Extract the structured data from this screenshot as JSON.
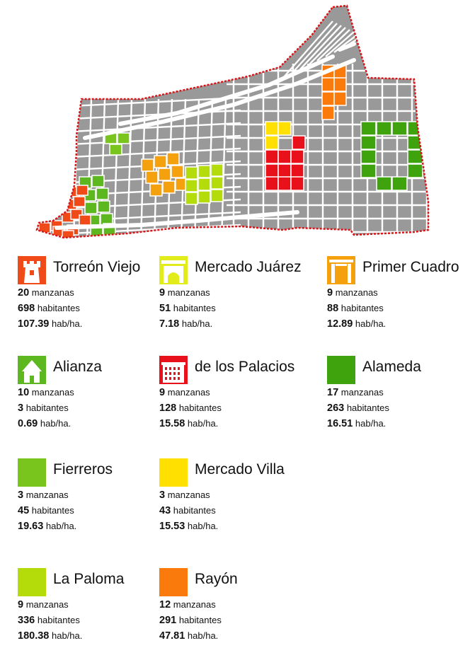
{
  "legend": [
    {
      "name": "Torreón Viejo",
      "color": "#f04a18",
      "icon": "tower-icon",
      "manzanas": "20",
      "manzanas_label": "manzanas",
      "habitantes": "698",
      "habitantes_label": "habitantes",
      "densidad": "107.39",
      "densidad_label": "hab/ha."
    },
    {
      "name": "Mercado Juárez",
      "color": "#e2ec1a",
      "icon": "market-arch-icon",
      "manzanas": "9",
      "manzanas_label": "manzanas",
      "habitantes": "51",
      "habitantes_label": "habitantes",
      "densidad": "7.18",
      "densidad_label": "hab/ha."
    },
    {
      "name": "Primer Cuadro",
      "color": "#f5a10e",
      "icon": "gate-icon",
      "manzanas": "9",
      "manzanas_label": "manzanas",
      "habitantes": "88",
      "habitantes_label": "habitantes",
      "densidad": "12.89",
      "densidad_label": "hab/ha."
    },
    {
      "name": "Alianza",
      "color": "#5cb81e",
      "icon": "house-icon",
      "manzanas": "10",
      "manzanas_label": "manzanas",
      "habitantes": "3",
      "habitantes_label": "habitantes",
      "densidad": "0.69",
      "densidad_label": "hab/ha."
    },
    {
      "name": "de los Palacios",
      "color": "#e8101a",
      "icon": "palace-icon",
      "manzanas": "9",
      "manzanas_label": "manzanas",
      "habitantes": "128",
      "habitantes_label": "habitantes",
      "densidad": "15.58",
      "densidad_label": "hab/ha."
    },
    {
      "name": "Alameda",
      "color": "#3fa30e",
      "icon": "solid-square-icon",
      "manzanas": "17",
      "manzanas_label": "manzanas",
      "habitantes": "263",
      "habitantes_label": "habitantes",
      "densidad": "16.51",
      "densidad_label": "hab/ha."
    },
    {
      "name": "Fierreros",
      "color": "#7ac41e",
      "icon": "solid-square-icon",
      "manzanas": "3",
      "manzanas_label": "manzanas",
      "habitantes": "45",
      "habitantes_label": "habitantes",
      "densidad": "19.63",
      "densidad_label": "hab/ha."
    },
    {
      "name": "Mercado Villa",
      "color": "#ffe000",
      "icon": "solid-square-icon",
      "manzanas": "3",
      "manzanas_label": "manzanas",
      "habitantes": "43",
      "habitantes_label": "habitantes",
      "densidad": "15.53",
      "densidad_label": "hab/ha."
    },
    {
      "name": "La Paloma",
      "color": "#b4dc0a",
      "icon": "solid-square-icon",
      "manzanas": "9",
      "manzanas_label": "manzanas",
      "habitantes": "336",
      "habitantes_label": "habitantes",
      "densidad": "180.38",
      "densidad_label": "hab/ha."
    },
    {
      "name": "Rayón",
      "color": "#fb7a0c",
      "icon": "solid-square-icon",
      "manzanas": "12",
      "manzanas_label": "manzanas",
      "habitantes": "291",
      "habitantes_label": "habitantes",
      "densidad": "47.81",
      "densidad_label": "hab/ha."
    }
  ],
  "map": {
    "block_color": "#999999",
    "street_color": "#ffffff",
    "boundary_color": "#d7161a"
  }
}
